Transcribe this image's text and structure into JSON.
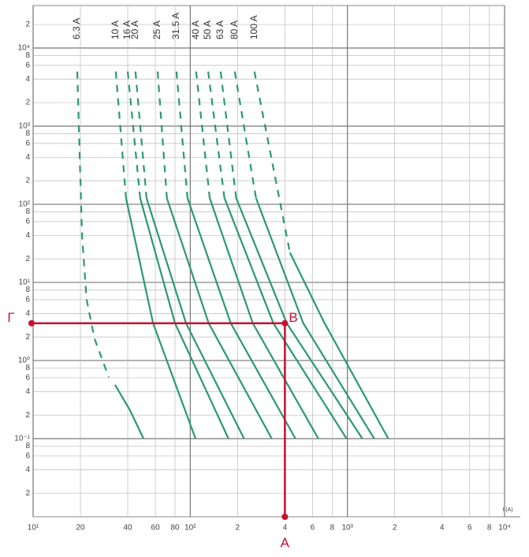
{
  "chart_data": {
    "type": "line",
    "x_label": "I (A)",
    "xlim": [
      10,
      10000
    ],
    "ylim": [
      0.01,
      35000
    ],
    "log_x": true,
    "log_y": true,
    "grid": true,
    "xticks": [
      {
        "value": 10,
        "label": "10¹"
      },
      20,
      40,
      60,
      80,
      {
        "value": 100,
        "label": "10²"
      },
      {
        "value": 200,
        "label": "2"
      },
      {
        "value": 400,
        "label": "4"
      },
      {
        "value": 600,
        "label": "6"
      },
      {
        "value": 800,
        "label": "8"
      },
      {
        "value": 1000,
        "label": "10³"
      },
      {
        "value": 2000,
        "label": "2"
      },
      {
        "value": 4000,
        "label": "4"
      },
      {
        "value": 6000,
        "label": "6"
      },
      {
        "value": 8000,
        "label": "8"
      },
      {
        "value": 10000,
        "label": "10⁴"
      }
    ],
    "yticks": [
      {
        "value": 0.02,
        "label": "2"
      },
      {
        "value": 0.04,
        "label": "4"
      },
      {
        "value": 0.06,
        "label": "6"
      },
      {
        "value": 0.08,
        "label": "8"
      },
      {
        "value": 0.1,
        "label": "10⁻¹"
      },
      {
        "value": 0.2,
        "label": "2"
      },
      {
        "value": 0.4,
        "label": "4"
      },
      {
        "value": 0.6,
        "label": "6"
      },
      {
        "value": 0.8,
        "label": "8"
      },
      {
        "value": 1,
        "label": "10⁰"
      },
      2,
      4,
      6,
      8,
      {
        "value": 10,
        "label": "10¹"
      },
      {
        "value": 20,
        "label": "2"
      },
      {
        "value": 40,
        "label": "4"
      },
      {
        "value": 60,
        "label": "6"
      },
      {
        "value": 80,
        "label": "8"
      },
      {
        "value": 100,
        "label": "10²"
      },
      {
        "value": 200,
        "label": "2"
      },
      {
        "value": 400,
        "label": "4"
      },
      {
        "value": 600,
        "label": "6"
      },
      {
        "value": 800,
        "label": "8"
      },
      {
        "value": 1000,
        "label": "10³"
      },
      {
        "value": 2000,
        "label": "2"
      },
      {
        "value": 4000,
        "label": "4"
      },
      {
        "value": 6000,
        "label": "6"
      },
      {
        "value": 8000,
        "label": "8"
      },
      {
        "value": 10000,
        "label": "10⁴"
      },
      {
        "value": 20000,
        "label": "2"
      }
    ],
    "series": [
      {
        "name": "6.3 A",
        "color": "#2a9a6e",
        "segments": [
          {
            "style": "dashed",
            "x": [
              19.1,
              19.8,
              20.5,
              21.9,
              24.6,
              30.3
            ],
            "values": [
              5000,
              395,
              38.5,
              6,
              1.9,
              0.61
            ]
          },
          {
            "style": "solid",
            "x": [
              33.2,
              41.4,
              50.4
            ],
            "values": [
              0.49,
              0.23,
              0.1
            ]
          }
        ]
      },
      {
        "name": "10 A",
        "color": "#2a9a6e",
        "segments": [
          {
            "style": "dashed",
            "x": [
              33.6,
              39
            ],
            "values": [
              5000,
              120
            ]
          },
          {
            "style": "solid",
            "x": [
              39,
              58,
              108
            ],
            "values": [
              120,
              3,
              0.1
            ]
          }
        ]
      },
      {
        "name": "16 A",
        "color": "#2a9a6e",
        "segments": [
          {
            "style": "dashed",
            "x": [
              40,
              48
            ],
            "values": [
              5000,
              120
            ]
          },
          {
            "style": "solid",
            "x": [
              48,
              80,
              175
            ],
            "values": [
              120,
              3,
              0.1
            ]
          }
        ]
      },
      {
        "name": "20 A",
        "color": "#2a9a6e",
        "segments": [
          {
            "style": "dashed",
            "x": [
              44.8,
              52.7
            ],
            "values": [
              5000,
              120
            ]
          },
          {
            "style": "solid",
            "x": [
              52.7,
              94,
              220
            ],
            "values": [
              120,
              3,
              0.1
            ]
          }
        ]
      },
      {
        "name": "25 A",
        "color": "#2a9a6e",
        "segments": [
          {
            "style": "dashed",
            "x": [
              62,
              71
            ],
            "values": [
              5000,
              120
            ]
          },
          {
            "style": "solid",
            "x": [
              71,
              131,
              330
            ],
            "values": [
              120,
              3,
              0.1
            ]
          }
        ]
      },
      {
        "name": "31.5 A",
        "color": "#2a9a6e",
        "segments": [
          {
            "style": "dashed",
            "x": [
              81.7,
              96
            ],
            "values": [
              5000,
              120
            ]
          },
          {
            "style": "solid",
            "x": [
              96,
              181,
              467
            ],
            "values": [
              120,
              3,
              0.1
            ]
          }
        ]
      },
      {
        "name": "40 A",
        "color": "#2a9a6e",
        "segments": [
          {
            "style": "dashed",
            "x": [
              109,
              133
            ],
            "values": [
              5000,
              120
            ]
          },
          {
            "style": "solid",
            "x": [
              133,
              250,
              653
            ],
            "values": [
              120,
              3,
              0.1
            ]
          }
        ]
      },
      {
        "name": "50 A",
        "color": "#2a9a6e",
        "segments": [
          {
            "style": "dashed",
            "x": [
              130,
              165
            ],
            "values": [
              5000,
              120
            ]
          },
          {
            "style": "solid",
            "x": [
              165,
              338,
              988
            ],
            "values": [
              120,
              3,
              0.1
            ]
          }
        ]
      },
      {
        "name": "63 A",
        "color": "#2a9a6e",
        "segments": [
          {
            "style": "dashed",
            "x": [
              156,
              196
            ],
            "values": [
              5000,
              120
            ]
          },
          {
            "style": "solid",
            "x": [
              196,
              411,
              1245
            ],
            "values": [
              120,
              3,
              0.1
            ]
          }
        ]
      },
      {
        "name": "80 A",
        "color": "#2a9a6e",
        "segments": [
          {
            "style": "dashed",
            "x": [
              192,
              262
            ],
            "values": [
              5000,
              120
            ]
          },
          {
            "style": "solid",
            "x": [
              262,
              524,
              1480
            ],
            "values": [
              120,
              3,
              0.1
            ]
          }
        ]
      },
      {
        "name": "100 A",
        "color": "#2a9a6e",
        "segments": [
          {
            "style": "dashed",
            "x": [
              256,
              431
            ],
            "values": [
              5000,
              24
            ]
          },
          {
            "style": "solid",
            "x": [
              431,
              716,
              1820
            ],
            "values": [
              24,
              3,
              0.1
            ]
          }
        ]
      }
    ],
    "annotation": {
      "x": 400,
      "y": 3,
      "point_label": "B",
      "x_label": "A",
      "y_label": "Γ",
      "color": "#c8102e"
    }
  }
}
